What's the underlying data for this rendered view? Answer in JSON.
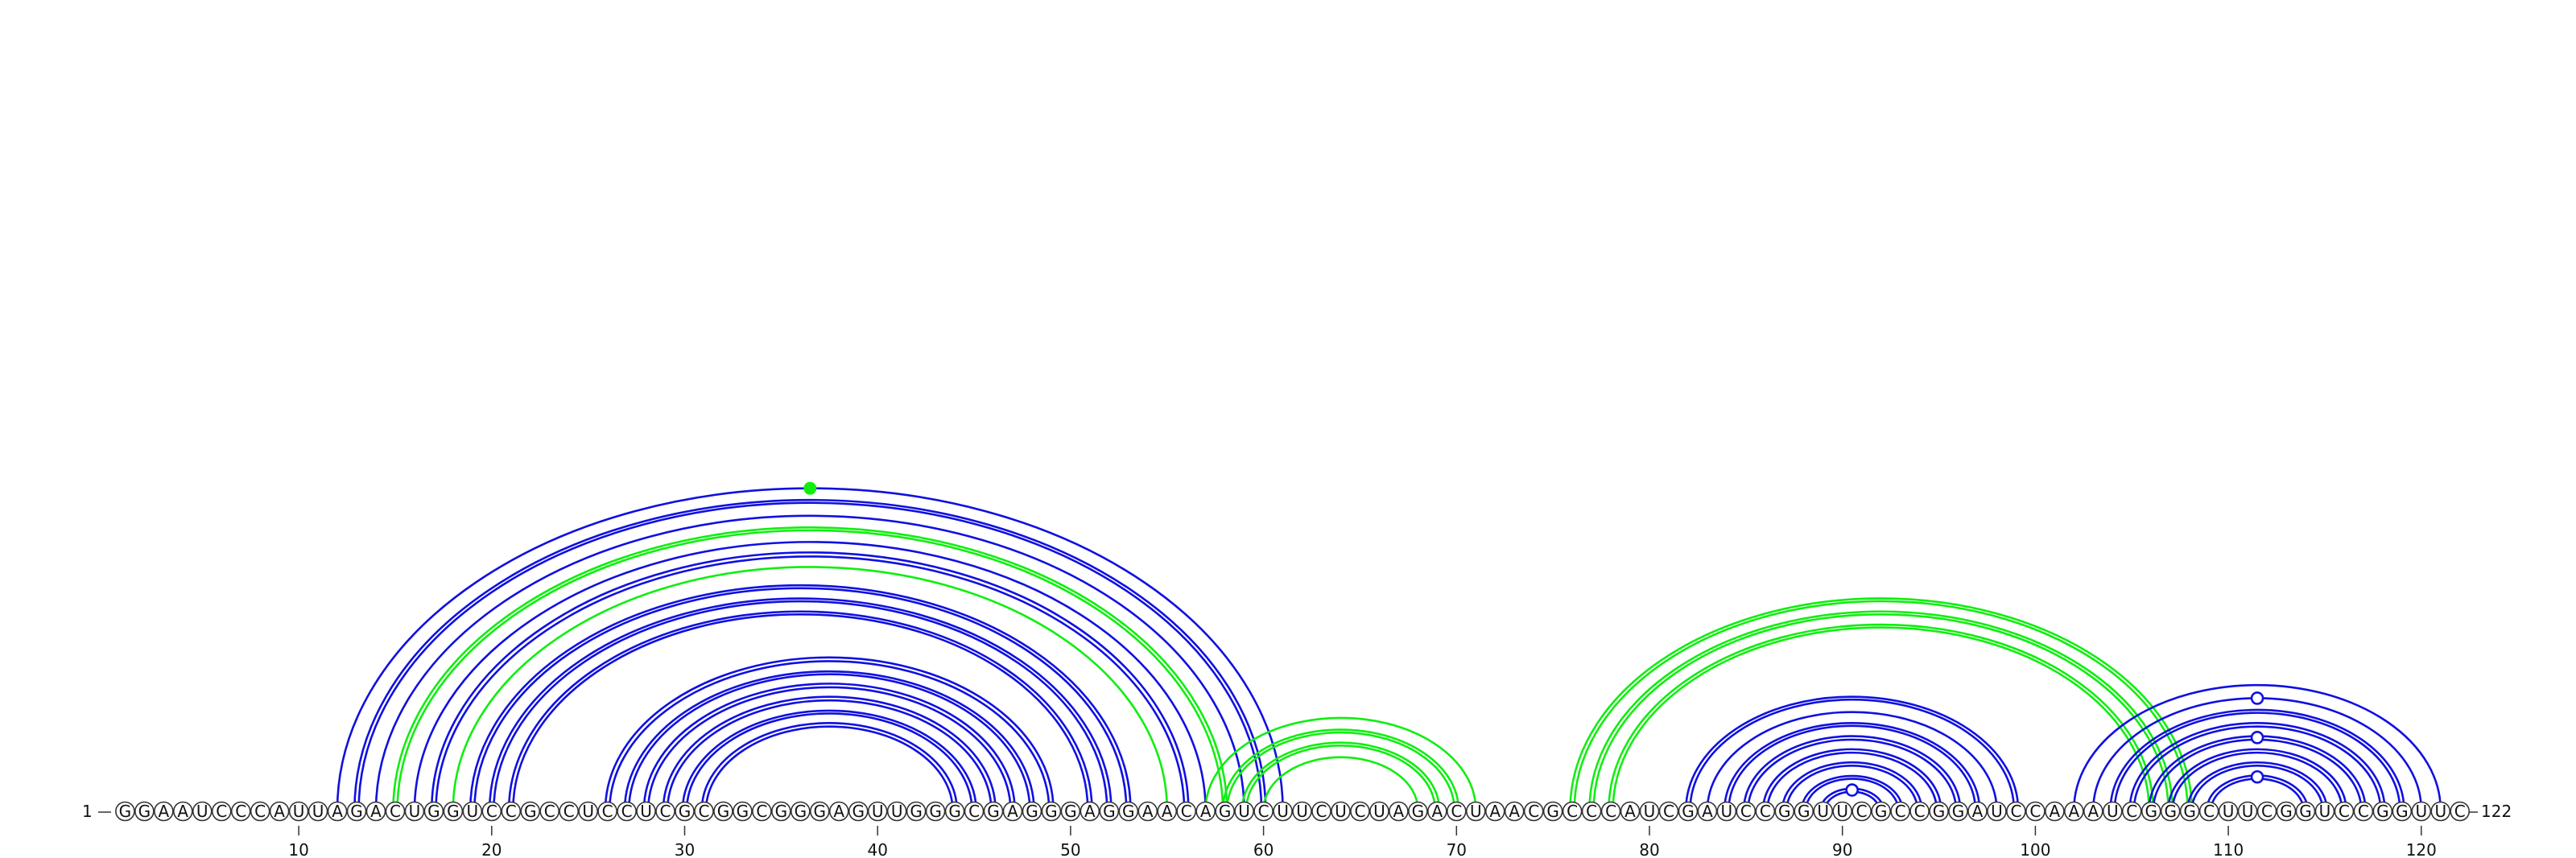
{
  "diagram": {
    "type": "rna-arc-diagram",
    "sequence": "GGAAUCCCAUUAGACUGGUCCGCCUCCUCGCGGCGGGAGUUGGGCGAGGGAGGAACAGUCUUCUCUAGACUAACGCCCAUCGAUCCGGUUCGCCGGAUCCAAAUCGGGCUUCGGUCCGGUUC",
    "start_label": "1",
    "end_label": "122",
    "ticks": [
      10,
      20,
      30,
      40,
      50,
      60,
      70,
      80,
      90,
      100,
      110,
      120
    ],
    "colors": {
      "blue": "#1010e0",
      "green": "#10ee10",
      "outline": "#333333"
    },
    "stems": [
      {
        "color": "blue",
        "i": 12,
        "j": 61,
        "doubled": false
      },
      {
        "color": "blue",
        "i": 13,
        "j": 60,
        "doubled": true
      },
      {
        "color": "blue",
        "i": 14,
        "j": 59,
        "doubled": false
      },
      {
        "color": "green",
        "i": 15,
        "j": 58,
        "doubled": true
      },
      {
        "color": "blue",
        "i": 16,
        "j": 57,
        "doubled": false
      },
      {
        "color": "blue",
        "i": 17,
        "j": 56,
        "doubled": true
      },
      {
        "color": "green",
        "i": 18,
        "j": 55,
        "doubled": false
      },
      {
        "color": "blue",
        "i": 19,
        "j": 53,
        "doubled": true
      },
      {
        "color": "blue",
        "i": 20,
        "j": 52,
        "doubled": true
      },
      {
        "color": "blue",
        "i": 21,
        "j": 51,
        "doubled": true
      },
      {
        "color": "blue",
        "i": 26,
        "j": 49,
        "doubled": true
      },
      {
        "color": "blue",
        "i": 27,
        "j": 48,
        "doubled": true
      },
      {
        "color": "blue",
        "i": 28,
        "j": 47,
        "doubled": true
      },
      {
        "color": "blue",
        "i": 29,
        "j": 46,
        "doubled": true
      },
      {
        "color": "blue",
        "i": 30,
        "j": 45,
        "doubled": true
      },
      {
        "color": "blue",
        "i": 31,
        "j": 44,
        "doubled": true
      },
      {
        "color": "green",
        "i": 57,
        "j": 71,
        "doubled": false
      },
      {
        "color": "green",
        "i": 58,
        "j": 70,
        "doubled": true
      },
      {
        "color": "green",
        "i": 59,
        "j": 69,
        "doubled": true
      },
      {
        "color": "green",
        "i": 60,
        "j": 68,
        "doubled": false
      },
      {
        "color": "green",
        "i": 76,
        "j": 108,
        "doubled": true
      },
      {
        "color": "green",
        "i": 77,
        "j": 107,
        "doubled": true
      },
      {
        "color": "green",
        "i": 78,
        "j": 106,
        "doubled": true
      },
      {
        "color": "blue",
        "i": 82,
        "j": 99,
        "doubled": true
      },
      {
        "color": "blue",
        "i": 83,
        "j": 98,
        "doubled": false
      },
      {
        "color": "blue",
        "i": 84,
        "j": 97,
        "doubled": true
      },
      {
        "color": "blue",
        "i": 85,
        "j": 96,
        "doubled": true
      },
      {
        "color": "blue",
        "i": 86,
        "j": 95,
        "doubled": true
      },
      {
        "color": "blue",
        "i": 87,
        "j": 94,
        "doubled": true
      },
      {
        "color": "blue",
        "i": 88,
        "j": 93,
        "doubled": true
      },
      {
        "color": "blue",
        "i": 89,
        "j": 92,
        "doubled": true
      },
      {
        "color": "blue",
        "i": 102,
        "j": 121,
        "doubled": false
      },
      {
        "color": "blue",
        "i": 103,
        "j": 120,
        "doubled": false
      },
      {
        "color": "blue",
        "i": 104,
        "j": 119,
        "doubled": true
      },
      {
        "color": "blue",
        "i": 105,
        "j": 118,
        "doubled": true
      },
      {
        "color": "blue",
        "i": 106,
        "j": 117,
        "doubled": true
      },
      {
        "color": "blue",
        "i": 107,
        "j": 116,
        "doubled": true
      },
      {
        "color": "blue",
        "i": 108,
        "j": 115,
        "doubled": true
      },
      {
        "color": "blue",
        "i": 109,
        "j": 114,
        "doubled": true
      }
    ],
    "markers": [
      {
        "color": "green",
        "i": 12,
        "j": 61,
        "style": "filled"
      },
      {
        "color": "blue",
        "i": 89,
        "j": 92,
        "style": "hollow"
      },
      {
        "color": "blue",
        "i": 103,
        "j": 120,
        "style": "hollow"
      },
      {
        "color": "blue",
        "i": 106,
        "j": 117,
        "style": "hollow"
      },
      {
        "color": "blue",
        "i": 109,
        "j": 114,
        "style": "hollow"
      }
    ]
  }
}
